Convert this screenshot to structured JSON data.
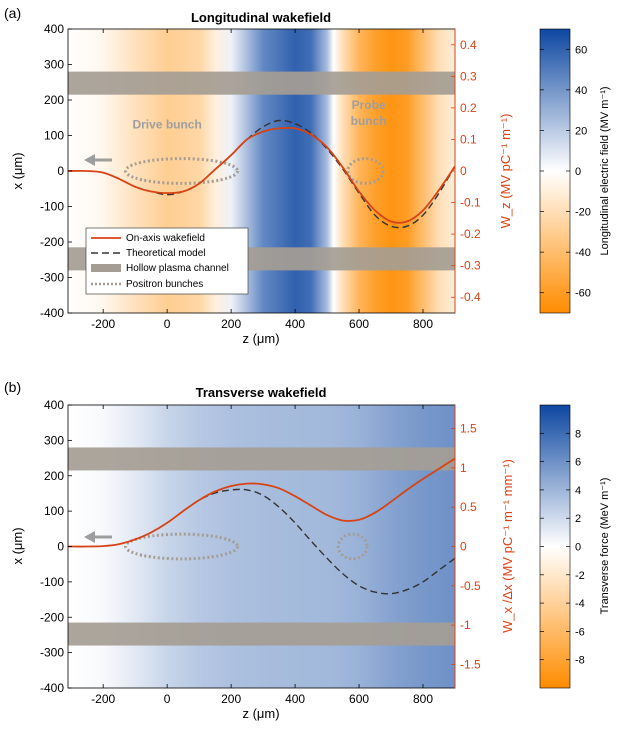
{
  "chart_data": [
    {
      "panel_label": "(a)",
      "type": "heatmap",
      "title": "Longitudinal wakefield",
      "xlabel": "z (μm)",
      "ylabel": "x (μm)",
      "y2label": "W_z (MV pC⁻¹ m⁻¹)",
      "xlim": [
        -310,
        900
      ],
      "ylim": [
        -400,
        400
      ],
      "y2lim": [
        -0.45,
        0.45
      ],
      "x_ticks": [
        -200,
        0,
        200,
        400,
        600,
        800
      ],
      "y_ticks": [
        -400,
        -300,
        -200,
        -100,
        0,
        100,
        200,
        300,
        400
      ],
      "y2_ticks": [
        -0.4,
        -0.3,
        -0.2,
        -0.1,
        0,
        0.1,
        0.2,
        0.3,
        0.4
      ],
      "colorbar": {
        "label": "Longitudinal electric field (MV m⁻¹)",
        "range": [
          -70,
          70
        ],
        "ticks": [
          -60,
          -40,
          -20,
          0,
          20,
          40,
          60
        ],
        "colors": [
          "#ff8c00",
          "#ffffff",
          "#0d47a1"
        ]
      },
      "field_profile": {
        "z": [
          -310,
          -200,
          -100,
          0,
          100,
          150,
          200,
          250,
          300,
          400,
          450,
          500,
          520,
          550,
          600,
          650,
          700,
          750,
          800,
          850,
          900
        ],
        "E": [
          0,
          -5,
          -18,
          -30,
          -25,
          -10,
          5,
          25,
          45,
          60,
          55,
          25,
          0,
          -20,
          -45,
          -58,
          -65,
          -60,
          -40,
          -20,
          -10
        ]
      },
      "channel_walls_um": [
        [
          215,
          280
        ],
        [
          -280,
          -215
        ]
      ],
      "annotations": [
        {
          "text": "Drive bunch",
          "x": 0,
          "y": 120
        },
        {
          "text": "Probe",
          "x": 630,
          "y": 175
        },
        {
          "text": "bunch",
          "x": 630,
          "y": 130
        }
      ],
      "bunches": [
        {
          "cx": 45,
          "cy": 0,
          "rx": 175,
          "ry": 35
        },
        {
          "cx": 620,
          "cy": 0,
          "rx": 55,
          "ry": 35
        }
      ],
      "series": [
        {
          "name": "On-axis wakefield",
          "axis": "right",
          "style": "solid",
          "x": [
            -310,
            -250,
            -200,
            -150,
            -100,
            -50,
            0,
            50,
            100,
            150,
            200,
            250,
            300,
            350,
            400,
            450,
            500,
            550,
            600,
            650,
            700,
            750,
            800,
            850,
            900
          ],
          "y": [
            0,
            0,
            -0.005,
            -0.025,
            -0.05,
            -0.065,
            -0.07,
            -0.065,
            -0.04,
            0.005,
            0.05,
            0.1,
            0.125,
            0.135,
            0.135,
            0.115,
            0.075,
            0.01,
            -0.065,
            -0.125,
            -0.16,
            -0.16,
            -0.125,
            -0.06,
            0.015
          ]
        },
        {
          "name": "Theoretical model",
          "axis": "right",
          "style": "dashed",
          "x": [
            -100,
            -50,
            0,
            50,
            100,
            150,
            200,
            250,
            300,
            350,
            400,
            450,
            500,
            550,
            600,
            650,
            700,
            750,
            800,
            850,
            900
          ],
          "y": [
            -0.05,
            -0.065,
            -0.075,
            -0.065,
            -0.04,
            0.005,
            0.05,
            0.1,
            0.14,
            0.16,
            0.15,
            0.12,
            0.07,
            0.005,
            -0.07,
            -0.14,
            -0.175,
            -0.175,
            -0.14,
            -0.07,
            0.015
          ]
        }
      ],
      "legend": {
        "placement": "lower-left",
        "entries": [
          "On-axis wakefield",
          "Theoretical model",
          "Hollow plasma channel",
          "Positron bunches"
        ]
      }
    },
    {
      "panel_label": "(b)",
      "type": "heatmap",
      "title": "Transverse wakefield",
      "xlabel": "z (μm)",
      "ylabel": "x (μm)",
      "y2label": "W_x /Δx (MV pC⁻¹ m⁻¹ mm⁻¹)",
      "xlim": [
        -310,
        900
      ],
      "ylim": [
        -400,
        400
      ],
      "y2lim": [
        -1.8,
        1.8
      ],
      "x_ticks": [
        -200,
        0,
        200,
        400,
        600,
        800
      ],
      "y_ticks": [
        -400,
        -300,
        -200,
        -100,
        0,
        100,
        200,
        300,
        400
      ],
      "y2_ticks": [
        -1.5,
        -1,
        -0.5,
        0,
        0.5,
        1,
        1.5
      ],
      "colorbar": {
        "label": "Transverse force (MeV m⁻¹)",
        "range": [
          -10,
          10
        ],
        "ticks": [
          -8,
          -6,
          -4,
          -2,
          0,
          2,
          4,
          6,
          8
        ],
        "colors": [
          "#ff8c00",
          "#ffffff",
          "#0d47a1"
        ]
      },
      "field_profile": {
        "z": [
          -310,
          -200,
          -100,
          0,
          100,
          200,
          300,
          400,
          500,
          600,
          700,
          800,
          900
        ],
        "E": [
          0,
          0.3,
          1.2,
          2.3,
          3.0,
          3.4,
          3.6,
          3.7,
          3.8,
          4.2,
          5.0,
          5.6,
          6.0
        ]
      },
      "channel_walls_um": [
        [
          215,
          280
        ],
        [
          -280,
          -215
        ]
      ],
      "bunches": [
        {
          "cx": 45,
          "cy": 0,
          "rx": 175,
          "ry": 35
        },
        {
          "cx": 580,
          "cy": 0,
          "rx": 45,
          "ry": 35
        }
      ],
      "series": [
        {
          "name": "On-axis wakefield",
          "axis": "right",
          "style": "solid",
          "x": [
            -310,
            -250,
            -200,
            -150,
            -100,
            -50,
            0,
            50,
            100,
            150,
            200,
            250,
            300,
            350,
            400,
            450,
            500,
            550,
            600,
            650,
            700,
            750,
            800,
            850,
            900
          ],
          "y": [
            0,
            0,
            0.005,
            0.03,
            0.09,
            0.18,
            0.3,
            0.45,
            0.59,
            0.7,
            0.77,
            0.8,
            0.79,
            0.74,
            0.64,
            0.52,
            0.4,
            0.33,
            0.34,
            0.43,
            0.57,
            0.72,
            0.86,
            0.99,
            1.12
          ]
        },
        {
          "name": "Theoretical model",
          "axis": "right",
          "style": "dashed",
          "x": [
            50,
            100,
            150,
            200,
            250,
            300,
            350,
            400,
            450,
            500,
            550,
            600,
            650,
            700,
            750,
            800,
            850,
            900
          ],
          "y": [
            0.45,
            0.59,
            0.68,
            0.72,
            0.72,
            0.65,
            0.5,
            0.3,
            0.07,
            -0.15,
            -0.35,
            -0.5,
            -0.58,
            -0.6,
            -0.55,
            -0.45,
            -0.3,
            -0.15
          ]
        }
      ]
    }
  ]
}
